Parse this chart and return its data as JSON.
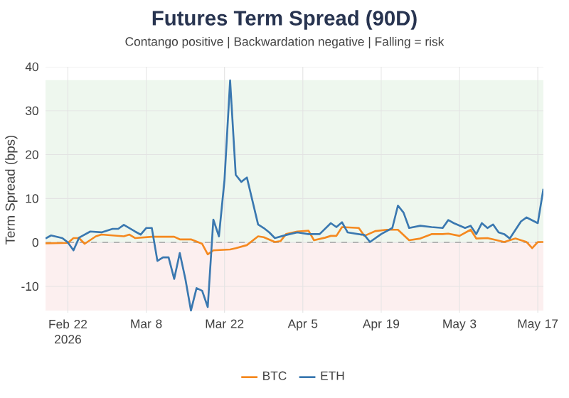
{
  "chart_data": {
    "type": "line",
    "title": "Futures Term Spread (90D)",
    "subtitle": "Contango positive | Backwardation negative | Falling = risk",
    "ylabel": "Term Spread (bps)",
    "xlim": [
      "2026-02-18",
      "2026-05-18"
    ],
    "xticks": [
      {
        "value": "2026-02-22",
        "label": "Feb 22 2026"
      },
      {
        "value": "2026-03-08",
        "label": "Mar 8"
      },
      {
        "value": "2026-03-22",
        "label": "Mar 22"
      },
      {
        "value": "2026-04-05",
        "label": "Apr 5"
      },
      {
        "value": "2026-04-19",
        "label": "Apr 19"
      },
      {
        "value": "2026-05-03",
        "label": "May 3"
      },
      {
        "value": "2026-05-17",
        "label": "May 17"
      }
    ],
    "ylim": [
      -16,
      40
    ],
    "yticks": [
      -10,
      0,
      10,
      20,
      30,
      40
    ],
    "grid": true,
    "legend": "bottom",
    "marker": "none",
    "line_style": "solid",
    "bands": [
      {
        "axis": "y",
        "from": 0,
        "to": 37,
        "color": "#eef7ee"
      },
      {
        "axis": "y",
        "from": -15.5,
        "to": 0,
        "color": "#fcefef"
      }
    ],
    "ref_lines": [
      {
        "axis": "y",
        "value": 0,
        "color": "#b0b0b0",
        "line_style": "dashed"
      }
    ],
    "series": [
      {
        "name": "BTC",
        "color": "#f5891f",
        "x": [
          "2026-02-18",
          "2026-02-22",
          "2026-02-23",
          "2026-02-24",
          "2026-02-25",
          "2026-02-27",
          "2026-02-28",
          "2026-03-04",
          "2026-03-05",
          "2026-03-06",
          "2026-03-09",
          "2026-03-13",
          "2026-03-14",
          "2026-03-16",
          "2026-03-18",
          "2026-03-19",
          "2026-03-20",
          "2026-03-23",
          "2026-03-24",
          "2026-03-26",
          "2026-03-28",
          "2026-03-29",
          "2026-03-31",
          "2026-04-01",
          "2026-04-02",
          "2026-04-04",
          "2026-04-06",
          "2026-04-07",
          "2026-04-09",
          "2026-04-10",
          "2026-04-11",
          "2026-04-12",
          "2026-04-15",
          "2026-04-16",
          "2026-04-18",
          "2026-04-20",
          "2026-04-22",
          "2026-04-24",
          "2026-04-26",
          "2026-04-28",
          "2026-04-30",
          "2026-05-01",
          "2026-05-03",
          "2026-05-05",
          "2026-05-06",
          "2026-05-08",
          "2026-05-09",
          "2026-05-11",
          "2026-05-13",
          "2026-05-15",
          "2026-05-16",
          "2026-05-17",
          "2026-05-18"
        ],
        "values": [
          -0.2,
          -0.1,
          1.0,
          1.0,
          -0.3,
          1.4,
          1.8,
          1.4,
          1.8,
          1.0,
          1.3,
          1.3,
          0.7,
          0.7,
          -0.3,
          -2.7,
          -1.8,
          -1.6,
          -1.3,
          -0.6,
          1.4,
          1.2,
          0.1,
          0.3,
          1.9,
          2.5,
          2.7,
          0.5,
          1.1,
          1.5,
          1.5,
          3.5,
          3.3,
          1.5,
          2.6,
          2.9,
          2.9,
          0.5,
          0.9,
          1.9,
          1.9,
          2.0,
          1.5,
          2.9,
          0.9,
          1.0,
          0.7,
          0.1,
          0.9,
          0.1,
          -1.3,
          0.1,
          0.1
        ]
      },
      {
        "name": "ETH",
        "color": "#3a78b0",
        "x": [
          "2026-02-18",
          "2026-02-19",
          "2026-02-21",
          "2026-02-22",
          "2026-02-23",
          "2026-02-24",
          "2026-02-26",
          "2026-02-28",
          "2026-03-02",
          "2026-03-03",
          "2026-03-04",
          "2026-03-06",
          "2026-03-07",
          "2026-03-08",
          "2026-03-09",
          "2026-03-10",
          "2026-03-11",
          "2026-03-12",
          "2026-03-13",
          "2026-03-14",
          "2026-03-15",
          "2026-03-16",
          "2026-03-17",
          "2026-03-18",
          "2026-03-19",
          "2026-03-20",
          "2026-03-21",
          "2026-03-22",
          "2026-03-23",
          "2026-03-24",
          "2026-03-25",
          "2026-03-26",
          "2026-03-28",
          "2026-03-29",
          "2026-03-30",
          "2026-03-31",
          "2026-04-02",
          "2026-04-04",
          "2026-04-06",
          "2026-04-08",
          "2026-04-10",
          "2026-04-11",
          "2026-04-12",
          "2026-04-13",
          "2026-04-16",
          "2026-04-17",
          "2026-04-19",
          "2026-04-21",
          "2026-04-22",
          "2026-04-23",
          "2026-04-24",
          "2026-04-26",
          "2026-04-28",
          "2026-04-30",
          "2026-05-01",
          "2026-05-02",
          "2026-05-04",
          "2026-05-05",
          "2026-05-06",
          "2026-05-07",
          "2026-05-08",
          "2026-05-09",
          "2026-05-10",
          "2026-05-11",
          "2026-05-12",
          "2026-05-14",
          "2026-05-15",
          "2026-05-17",
          "2026-05-18"
        ],
        "values": [
          0.9,
          1.6,
          1.0,
          0.0,
          -1.8,
          1.1,
          2.5,
          2.3,
          3.1,
          3.1,
          4.0,
          2.5,
          1.8,
          3.3,
          3.3,
          -4.2,
          -3.4,
          -3.4,
          -8.3,
          -2.4,
          -8.3,
          -15.5,
          -10.4,
          -11,
          -14.7,
          5.2,
          1.4,
          14.3,
          36.9,
          15.4,
          13.8,
          14.8,
          4.1,
          3.3,
          2.3,
          1.0,
          1.7,
          2.3,
          1.9,
          1.9,
          4.4,
          3.5,
          4.6,
          2.3,
          1.7,
          0.1,
          1.9,
          3.3,
          8.4,
          6.8,
          3.3,
          3.8,
          3.5,
          3.3,
          5.1,
          4.4,
          3.3,
          3.8,
          1.9,
          4.4,
          3.3,
          4.1,
          2.3,
          1.9,
          0.9,
          4.8,
          5.7,
          4.4,
          12.2
        ]
      }
    ]
  }
}
